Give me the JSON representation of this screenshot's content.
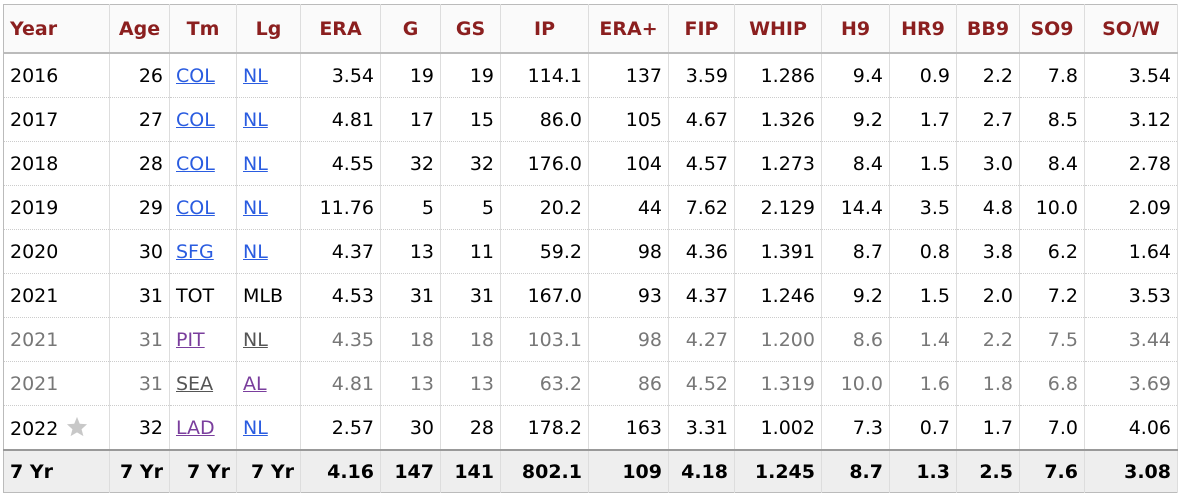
{
  "table": {
    "header": [
      "Year",
      "Age",
      "Tm",
      "Lg",
      "ERA",
      "G",
      "GS",
      "IP",
      "ERA+",
      "FIP",
      "WHIP",
      "H9",
      "HR9",
      "BB9",
      "SO9",
      "SO/W"
    ],
    "rows": [
      [
        "2016",
        "26",
        "COL",
        "NL",
        "3.54",
        "19",
        "19",
        "114.1",
        "137",
        "3.59",
        "1.286",
        "9.4",
        "0.9",
        "2.2",
        "7.8",
        "3.54"
      ],
      [
        "2017",
        "27",
        "COL",
        "NL",
        "4.81",
        "17",
        "15",
        "86.0",
        "105",
        "4.67",
        "1.326",
        "9.2",
        "1.7",
        "2.7",
        "8.5",
        "3.12"
      ],
      [
        "2018",
        "28",
        "COL",
        "NL",
        "4.55",
        "32",
        "32",
        "176.0",
        "104",
        "4.57",
        "1.273",
        "8.4",
        "1.5",
        "3.0",
        "8.4",
        "2.78"
      ],
      [
        "2019",
        "29",
        "COL",
        "NL",
        "11.76",
        "5",
        "5",
        "20.2",
        "44",
        "7.62",
        "2.129",
        "14.4",
        "3.5",
        "4.8",
        "10.0",
        "2.09"
      ],
      [
        "2020",
        "30",
        "SFG",
        "NL",
        "4.37",
        "13",
        "11",
        "59.2",
        "98",
        "4.36",
        "1.391",
        "8.7",
        "0.8",
        "3.8",
        "6.2",
        "1.64"
      ],
      [
        "2021",
        "31",
        "TOT",
        "MLB",
        "4.53",
        "31",
        "31",
        "167.0",
        "93",
        "4.37",
        "1.246",
        "9.2",
        "1.5",
        "2.0",
        "7.2",
        "3.53"
      ],
      [
        "2021",
        "31",
        "PIT",
        "NL",
        "4.35",
        "18",
        "18",
        "103.1",
        "98",
        "4.27",
        "1.200",
        "8.6",
        "1.4",
        "2.2",
        "7.5",
        "3.44"
      ],
      [
        "2021",
        "31",
        "SEA",
        "AL",
        "4.81",
        "13",
        "13",
        "63.2",
        "86",
        "4.52",
        "1.319",
        "10.0",
        "1.6",
        "1.8",
        "6.8",
        "3.69"
      ],
      [
        "2022",
        "32",
        "LAD",
        "NL",
        "2.57",
        "30",
        "28",
        "178.2",
        "163",
        "3.31",
        "1.002",
        "7.3",
        "0.7",
        "1.7",
        "7.0",
        "4.06"
      ]
    ],
    "footer": [
      "7 Yr",
      "7 Yr",
      "7 Yr",
      "7 Yr",
      "4.16",
      "147",
      "141",
      "802.1",
      "109",
      "4.18",
      "1.245",
      "8.7",
      "1.3",
      "2.5",
      "7.6",
      "3.08"
    ]
  }
}
